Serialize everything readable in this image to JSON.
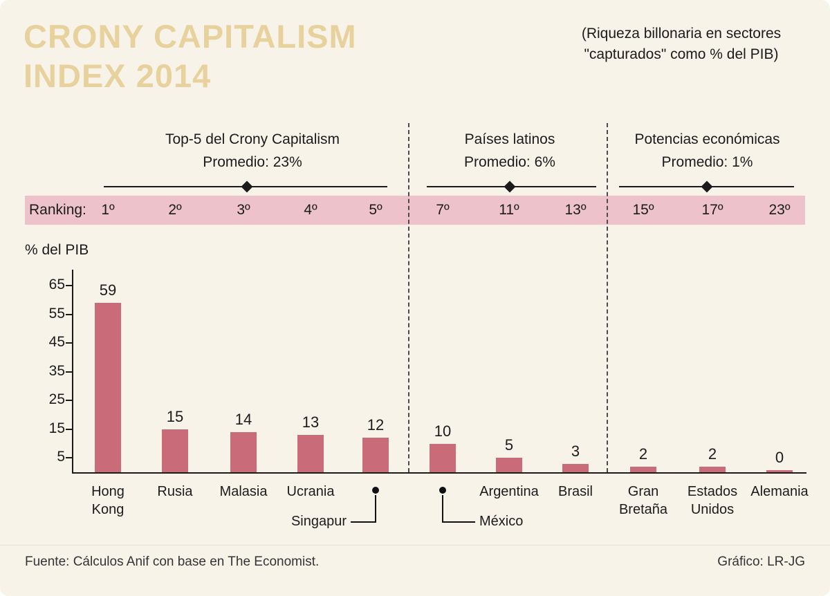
{
  "title": {
    "line1": "CRONY CAPITALISM",
    "line2": "INDEX 2014"
  },
  "subtitle": {
    "line1": "(Riqueza billonaria en sectores",
    "line2": "\"capturados\" como % del PIB)"
  },
  "groups": [
    {
      "label": "Top-5 del Crony Capitalism",
      "promedio": "Promedio: 23%"
    },
    {
      "label": "Países latinos",
      "promedio": "Promedio: 6%"
    },
    {
      "label": "Potencias económicas",
      "promedio": "Promedio: 1%"
    }
  ],
  "ranking": {
    "label": "Ranking:",
    "values": [
      "1º",
      "2º",
      "3º",
      "4º",
      "5º",
      "7º",
      "11º",
      "13º",
      "15º",
      "17º",
      "23º"
    ]
  },
  "axis": {
    "ylabel": "% del PIB",
    "yticks": [
      5,
      15,
      25,
      35,
      45,
      55,
      65
    ]
  },
  "chart_data": {
    "type": "bar",
    "title": "Crony Capitalism Index 2014",
    "xlabel": "",
    "ylabel": "% del PIB",
    "ylim": [
      0,
      65
    ],
    "grid": false,
    "legend": false,
    "categories": [
      "Hong Kong",
      "Rusia",
      "Malasia",
      "Ucrania",
      "Singapur",
      "México",
      "Argentina",
      "Brasil",
      "Gran Bretaña",
      "Estados Unidos",
      "Alemania"
    ],
    "values": [
      59,
      15,
      14,
      13,
      12,
      10,
      5,
      3,
      2,
      2,
      0
    ],
    "rank_labels": [
      "1º",
      "2º",
      "3º",
      "4º",
      "5º",
      "7º",
      "11º",
      "13º",
      "15º",
      "17º",
      "23º"
    ],
    "groups": [
      {
        "name": "Top-5 del Crony Capitalism",
        "average_label": "Promedio: 23%",
        "categories": [
          "Hong Kong",
          "Rusia",
          "Malasia",
          "Ucrania",
          "Singapur"
        ]
      },
      {
        "name": "Países latinos",
        "average_label": "Promedio: 6%",
        "categories": [
          "México",
          "Argentina",
          "Brasil"
        ]
      },
      {
        "name": "Potencias económicas",
        "average_label": "Promedio: 1%",
        "categories": [
          "Gran Bretaña",
          "Estados Unidos",
          "Alemania"
        ]
      }
    ]
  },
  "colors": {
    "background": "#f8f3e9",
    "title_text": "#e7d19c",
    "bar": "#c96b79",
    "ranking_band": "#edc2ca",
    "text": "#1b1b1b"
  },
  "footer": {
    "source": "Fuente: Cálculos Anif con base en The Economist.",
    "credit": "Gráfico: LR-JG"
  }
}
